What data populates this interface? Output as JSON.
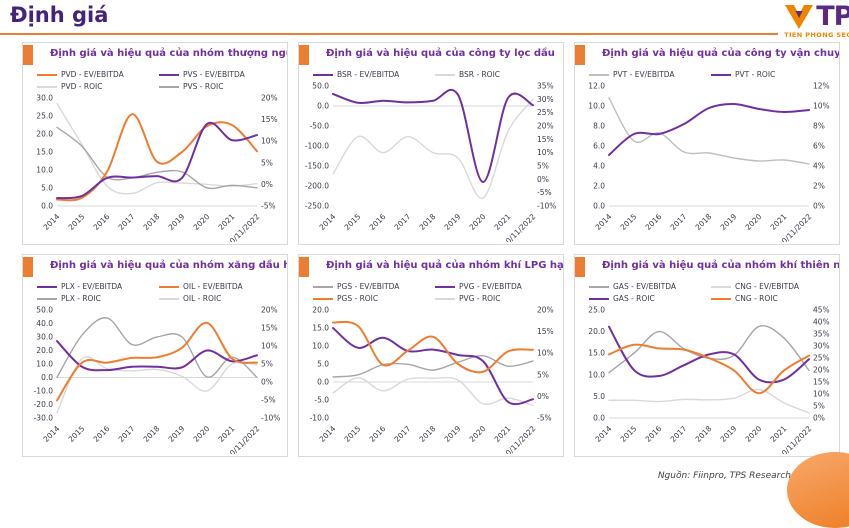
{
  "page": {
    "title": "Định giá",
    "source_note": "Nguồn: Fiinpro, TPS Research"
  },
  "logo": {
    "text": "TPS",
    "subtext": "TIEN PHONG SECURITIES"
  },
  "colors": {
    "orange": "#ED7D31",
    "purple": "#7030A0",
    "title_purple": "#44237A",
    "gray": "#A6A6A6",
    "light_gray": "#D9D9D9",
    "axis_text": "#3B3B4D",
    "panel_border": "#D9D9D9"
  },
  "chart_data": [
    {
      "type": "line",
      "title": "Định giá và hiệu quả của nhóm thượng nguồn",
      "x": [
        "2014",
        "2015",
        "2016",
        "2017",
        "2018",
        "2019",
        "2020",
        "2021",
        "10/11/2022"
      ],
      "left_axis": {
        "min": 0,
        "max": 30,
        "ticks": [
          "0.0",
          "5.0",
          "10.0",
          "15.0",
          "20.0",
          "25.0",
          "30.0"
        ]
      },
      "right_axis": {
        "min": -5,
        "max": 20,
        "ticks": [
          "-5%",
          "0%",
          "5%",
          "10%",
          "15%",
          "20%"
        ]
      },
      "series": [
        {
          "name": "PVD - EV/EBITDA",
          "color": "#ED7D31",
          "axis": "left",
          "values": [
            1.8,
            2.3,
            9.5,
            25.5,
            12.3,
            15.0,
            22.2,
            22.5,
            15.2
          ]
        },
        {
          "name": "PVS - EV/EBITDA",
          "color": "#7030A0",
          "axis": "left",
          "values": [
            2.2,
            2.8,
            7.8,
            7.9,
            8.3,
            7.8,
            22.8,
            18.3,
            19.7
          ]
        },
        {
          "name": "PVD - ROIC",
          "color": "#D9D9D9",
          "axis": "right",
          "values": [
            18.7,
            9.2,
            -0.4,
            -2.1,
            0.4,
            0.3,
            0.0,
            -0.4,
            0.2
          ]
        },
        {
          "name": "PVS - ROIC",
          "color": "#A6A6A6",
          "axis": "right",
          "values": [
            13.2,
            8.8,
            1.7,
            1.5,
            2.8,
            2.9,
            -0.8,
            -0.2,
            -0.8
          ]
        }
      ]
    },
    {
      "type": "line",
      "title": "Định giá và hiệu quả của công ty lọc dầu",
      "x": [
        "2014",
        "2015",
        "2016",
        "2017",
        "2018",
        "2019",
        "2020",
        "2021",
        "10/11/2022"
      ],
      "left_axis": {
        "min": -250,
        "max": 50,
        "ticks": [
          "-250.0",
          "-200.0",
          "-150.0",
          "-100.0",
          "-50.0",
          "0.0",
          "50.0"
        ]
      },
      "right_axis": {
        "min": -10,
        "max": 35,
        "ticks": [
          "-10%",
          "-5%",
          "0%",
          "5%",
          "10%",
          "15%",
          "20%",
          "25%",
          "30%",
          "35%"
        ]
      },
      "series": [
        {
          "name": "BSR - EV/EBITDA",
          "color": "#7030A0",
          "axis": "left",
          "values": [
            30,
            8,
            13,
            9,
            13,
            28,
            -190,
            20,
            2
          ]
        },
        {
          "name": "BSR - ROIC",
          "color": "#D9D9D9",
          "axis": "right",
          "values": [
            2,
            16,
            10,
            16,
            10,
            8,
            -7,
            18,
            30
          ]
        }
      ]
    },
    {
      "type": "line",
      "title": "Định giá và hiệu quả của công ty vận chuyển",
      "x": [
        "2014",
        "2015",
        "2016",
        "2017",
        "2018",
        "2019",
        "2020",
        "2021",
        "10/11/2022"
      ],
      "left_axis": {
        "min": 0,
        "max": 12,
        "ticks": [
          "0.0",
          "2.0",
          "4.0",
          "6.0",
          "8.0",
          "10.0",
          "12.0"
        ]
      },
      "right_axis": {
        "min": 0,
        "max": 12,
        "ticks": [
          "0%",
          "2%",
          "4%",
          "6%",
          "8%",
          "10%",
          "12%"
        ]
      },
      "series": [
        {
          "name": "PVT - EV/EBITDA",
          "color": "#BFBFBF",
          "axis": "left",
          "values": [
            10.8,
            6.5,
            7.3,
            5.4,
            5.3,
            4.8,
            4.5,
            4.6,
            4.2
          ]
        },
        {
          "name": "PVT - ROIC",
          "color": "#7030A0",
          "axis": "right",
          "values": [
            5.1,
            7.2,
            7.2,
            8.2,
            9.8,
            10.2,
            9.7,
            9.4,
            9.6
          ]
        }
      ]
    },
    {
      "type": "line",
      "title": "Định giá và hiệu quả của nhóm xăng dầu hạ nguồn",
      "x": [
        "2014",
        "2015",
        "2016",
        "2017",
        "2018",
        "2019",
        "2020",
        "2021",
        "10/11/2022"
      ],
      "left_axis": {
        "min": -30,
        "max": 50,
        "ticks": [
          "-30.0",
          "-20.0",
          "-10.0",
          "0.0",
          "10.0",
          "20.0",
          "30.0",
          "40.0",
          "50.0"
        ]
      },
      "right_axis": {
        "min": -10,
        "max": 20,
        "ticks": [
          "-10%",
          "-5%",
          "0%",
          "5%",
          "10%",
          "15%",
          "20%"
        ]
      },
      "series": [
        {
          "name": "PLX - EV/EBITDA",
          "color": "#7030A0",
          "axis": "left",
          "values": [
            27,
            8,
            5.5,
            8,
            8,
            7.5,
            20,
            12,
            16.5
          ]
        },
        {
          "name": "OIL - EV/EBITDA",
          "color": "#ED7D31",
          "axis": "left",
          "values": [
            -17,
            11,
            11,
            14.5,
            15,
            22,
            40.5,
            14,
            11
          ]
        },
        {
          "name": "PLX - ROIC",
          "color": "#A6A6A6",
          "axis": "right",
          "values": [
            1.3,
            13,
            17.8,
            10.4,
            12.5,
            12.5,
            1.4,
            6.9,
            1.3
          ]
        },
        {
          "name": "OIL - ROIC",
          "color": "#D9D9D9",
          "axis": "right",
          "values": [
            -8.5,
            6.5,
            3.7,
            3.1,
            3.5,
            1.6,
            -2.5,
            5.0,
            4.8
          ]
        }
      ]
    },
    {
      "type": "line",
      "title": "Định giá và hiệu quả của nhóm khí LPG hạ nguồn",
      "x": [
        "2014",
        "2015",
        "2016",
        "2017",
        "2018",
        "2019",
        "2020",
        "2021",
        "10/11/2022"
      ],
      "left_axis": {
        "min": -10,
        "max": 20,
        "ticks": [
          "-10.0",
          "-5.0",
          "0.0",
          "5.0",
          "10.0",
          "15.0",
          "20.0"
        ]
      },
      "right_axis": {
        "min": -5,
        "max": 20,
        "ticks": [
          "-5%",
          "0%",
          "5%",
          "10%",
          "15%",
          "20%"
        ]
      },
      "series": [
        {
          "name": "PGS - EV/EBITDA",
          "color": "#A6A6A6",
          "axis": "left",
          "values": [
            1.4,
            2.0,
            4.8,
            4.9,
            3.3,
            5.5,
            7.3,
            4.4,
            5.8
          ]
        },
        {
          "name": "PVG - EV/EBITDA",
          "color": "#7030A0",
          "axis": "left",
          "values": [
            15,
            9.5,
            12.3,
            8.6,
            9.0,
            7.5,
            5.8,
            -5.5,
            -4.8
          ]
        },
        {
          "name": "PGS - ROIC",
          "color": "#ED7D31",
          "axis": "right",
          "values": [
            17.1,
            16.3,
            7.3,
            10.6,
            13.8,
            7.5,
            5.7,
            10.4,
            10.8
          ]
        },
        {
          "name": "PVG - ROIC",
          "color": "#D9D9D9",
          "axis": "right",
          "values": [
            0.8,
            4.3,
            1.3,
            4.0,
            4.2,
            3.8,
            -1.7,
            -0.4,
            -2.1
          ]
        }
      ]
    },
    {
      "type": "line",
      "title": "Định giá và hiệu quả của nhóm khí thiên nhiên",
      "x": [
        "2014",
        "2015",
        "2016",
        "2017",
        "2018",
        "2019",
        "2020",
        "2021",
        "10/11/2022"
      ],
      "left_axis": {
        "min": 0,
        "max": 25,
        "ticks": [
          "0.0",
          "5.0",
          "10.0",
          "15.0",
          "20.0",
          "25.0"
        ]
      },
      "right_axis": {
        "min": 0,
        "max": 45,
        "ticks": [
          "0%",
          "5%",
          "10%",
          "15%",
          "20%",
          "25%",
          "30%",
          "35%",
          "40%",
          "45%"
        ]
      },
      "series": [
        {
          "name": "GAS - EV/EBITDA",
          "color": "#A6A6A6",
          "axis": "left",
          "values": [
            10.5,
            15,
            20,
            16,
            13.8,
            14.5,
            21.2,
            18.5,
            11
          ]
        },
        {
          "name": "CNG - EV/EBITDA",
          "color": "#D9D9D9",
          "axis": "left",
          "values": [
            4.1,
            4.1,
            3.8,
            4.3,
            4.2,
            4.6,
            6.6,
            3.5,
            1.2
          ]
        },
        {
          "name": "GAS - ROIC",
          "color": "#7030A0",
          "axis": "right",
          "values": [
            38,
            20,
            17.5,
            22,
            26.5,
            26.5,
            16,
            16,
            24.5
          ]
        },
        {
          "name": "CNG - ROIC",
          "color": "#ED7D31",
          "axis": "right",
          "values": [
            26.5,
            30.5,
            29,
            28.5,
            25,
            19.8,
            10.3,
            19.8,
            26
          ]
        }
      ]
    }
  ]
}
